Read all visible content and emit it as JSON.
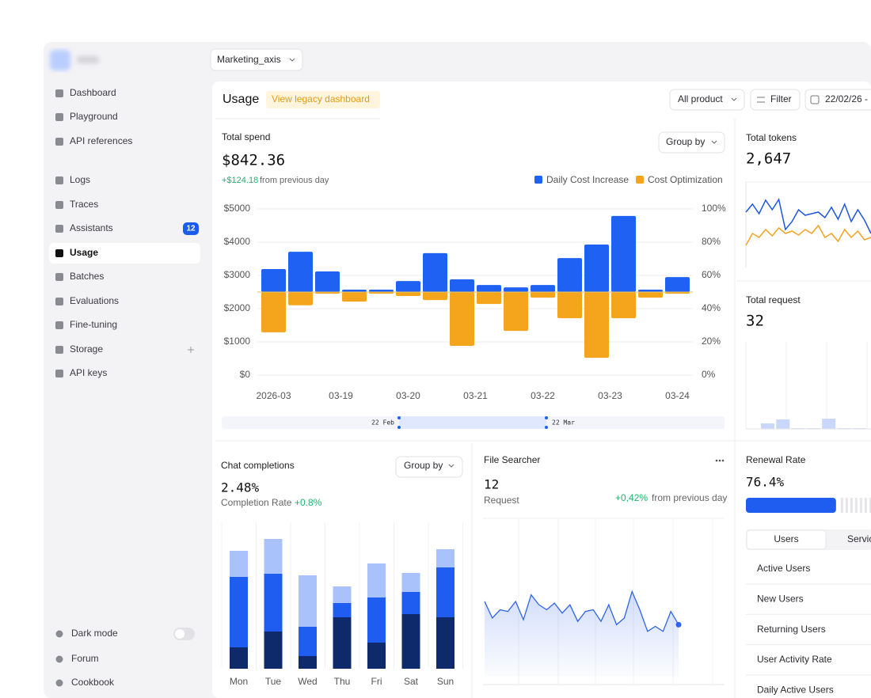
{
  "sidebar": {
    "items": [
      {
        "label": "Dashboard"
      },
      {
        "label": "Playground"
      },
      {
        "label": "API references"
      },
      {
        "label": "Logs"
      },
      {
        "label": "Traces"
      },
      {
        "label": "Assistants",
        "badge": "12"
      },
      {
        "label": "Usage",
        "active": true
      },
      {
        "label": "Batches"
      },
      {
        "label": "Evaluations"
      },
      {
        "label": "Fine-tuning"
      },
      {
        "label": "Storage"
      },
      {
        "label": "API keys"
      }
    ],
    "bottom": [
      "Dark mode",
      "Forum",
      "Cookbook"
    ]
  },
  "topbar": {
    "workspace": "Marketing_axis"
  },
  "header": {
    "title": "Usage",
    "legacy_link": "View legacy dashboard",
    "product_filter": "All product",
    "filter": "Filter",
    "date": "22/02/26 -"
  },
  "renewal": {
    "tabs": [
      "Users",
      "Services"
    ],
    "rows": [
      "Active Users",
      "New Users",
      "Returning Users",
      "User Activity Rate",
      "Daily Active Users"
    ]
  },
  "chart_data": [
    {
      "type": "bar",
      "diverging": true,
      "title": "Total spend",
      "kpi": "$842.36",
      "change": "+$124.18",
      "change_note": "from previous day",
      "group_by": "Group by",
      "series": [
        {
          "name": "Daily Cost Increase",
          "color": "#1f62f3",
          "values": [
            690,
            1210,
            620,
            70,
            70,
            330,
            1170,
            380,
            210,
            140,
            210,
            1020,
            1430,
            2290,
            70,
            450
          ]
        },
        {
          "name": "Cost Optimization",
          "color": "#f5a51c",
          "values": [
            1210,
            400,
            50,
            290,
            50,
            120,
            240,
            1620,
            360,
            1170,
            170,
            790,
            1980,
            790,
            170,
            50
          ]
        }
      ],
      "xtick_labels": [
        "2026-03",
        "03-19",
        "03-20",
        "03-21",
        "03-22",
        "03-23",
        "03-24"
      ],
      "ylim": [
        0,
        5000
      ],
      "yticks": [
        {
          "value": 0,
          "label": "$0"
        },
        {
          "value": 1000,
          "label": "$1000"
        },
        {
          "value": 2000,
          "label": "$2000"
        },
        {
          "value": 3000,
          "label": "$3000"
        },
        {
          "value": 4000,
          "label": "$4000"
        },
        {
          "value": 5000,
          "label": "$5000"
        }
      ],
      "y2lim": [
        0,
        100
      ],
      "y2ticks": [
        {
          "value": 0,
          "label": "0%"
        },
        {
          "value": 20,
          "label": "20%"
        },
        {
          "value": 40,
          "label": "40%"
        },
        {
          "value": 60,
          "label": "60%"
        },
        {
          "value": 80,
          "label": "80%"
        },
        {
          "value": 100,
          "label": "100%"
        }
      ],
      "grid": true,
      "range_start": "22 Feb",
      "range_end": "22 Mar"
    },
    {
      "type": "line",
      "title": "Total tokens",
      "kpi": "2,647",
      "ylim": [
        0,
        100
      ],
      "series": [
        {
          "color": "#1f56e0",
          "values": [
            62,
            72,
            60,
            77,
            65,
            78,
            40,
            50,
            65,
            58,
            60,
            62,
            55,
            68,
            53,
            72,
            50,
            65,
            52,
            35
          ]
        },
        {
          "color": "#f2a323",
          "values": [
            20,
            35,
            30,
            40,
            32,
            42,
            35,
            38,
            33,
            40,
            35,
            45,
            30,
            35,
            25,
            40,
            30,
            38,
            27,
            30
          ]
        }
      ]
    },
    {
      "type": "bar",
      "title": "Total request",
      "kpi": "32",
      "ylim": [
        0,
        110
      ],
      "color": "#c9d7fb",
      "values": [
        7,
        12,
        1,
        1,
        13,
        1,
        1
      ]
    },
    {
      "type": "stacked_bar",
      "title": "Chat completions",
      "group_by": "Group by",
      "kpi": "2.48%",
      "kpi_label": "Completion Rate",
      "change": "+0.8%",
      "ylim": [
        0,
        180
      ],
      "categories": [
        "Mon",
        "Tue",
        "Wed",
        "Thu",
        "Fri",
        "Sat",
        "Sun"
      ],
      "series": [
        {
          "color": "#0f2a6b",
          "values": [
            27,
            47,
            16,
            65,
            33,
            69,
            65
          ]
        },
        {
          "color": "#1f5df0",
          "values": [
            89,
            73,
            37,
            18,
            57,
            28,
            63
          ]
        },
        {
          "color": "#aac2fb",
          "values": [
            33,
            44,
            65,
            21,
            43,
            24,
            23
          ]
        }
      ]
    },
    {
      "type": "area",
      "title": "File Searcher",
      "kpi": "12",
      "kpi_label": "Request",
      "change": "+0,42%",
      "change_note": "from previous day",
      "ylim": [
        0,
        100
      ],
      "color": "#2f64e8",
      "values": [
        50,
        40,
        45,
        44,
        50,
        39,
        54,
        48,
        45,
        49,
        43,
        48,
        38,
        44,
        45,
        38,
        48,
        36,
        40,
        56,
        45,
        32,
        35,
        32,
        44,
        36
      ]
    },
    {
      "type": "progress",
      "title": "Renewal Rate",
      "values": [
        76.4
      ],
      "value_labels": [
        "76.4%"
      ],
      "xlim": [
        0,
        100
      ],
      "color": "#1f5df0"
    }
  ]
}
